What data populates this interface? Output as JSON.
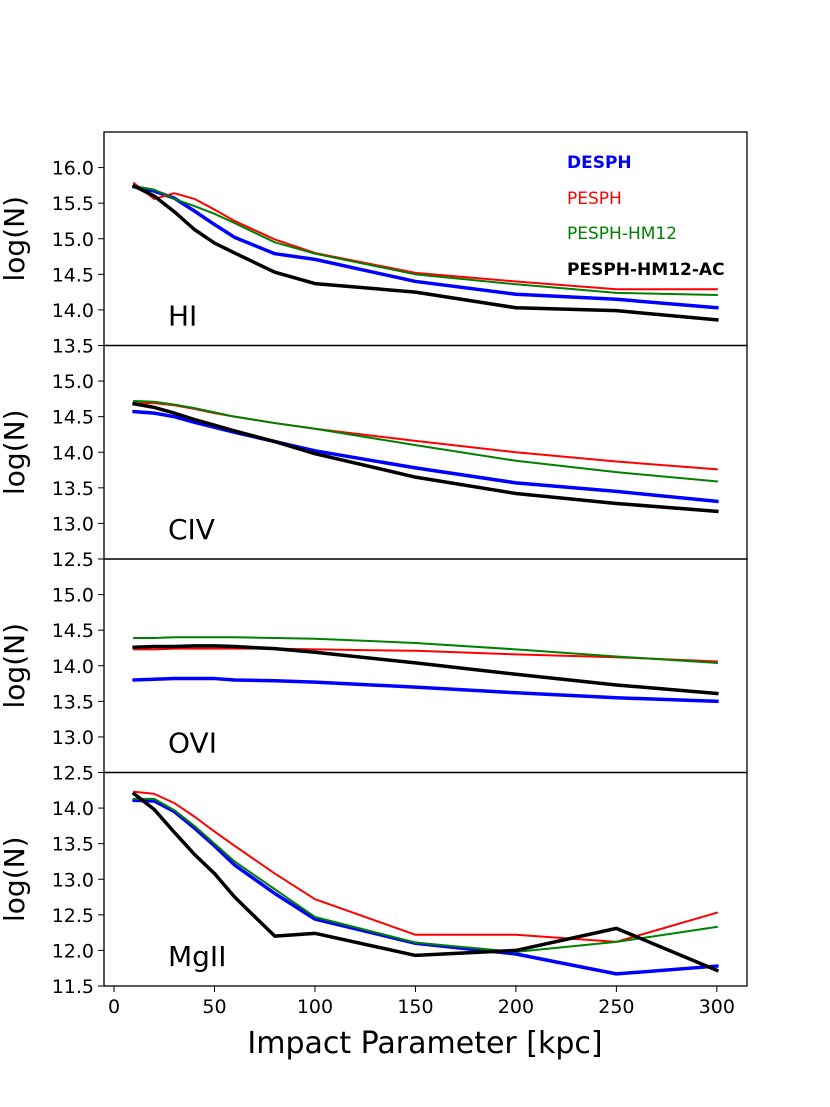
{
  "chart_data": {
    "type": "line",
    "xlabel": "Impact Parameter [kpc]",
    "xlim": [
      -5,
      315
    ],
    "xticks": [
      0,
      50,
      100,
      150,
      200,
      250,
      300
    ],
    "legend": {
      "placement": "top-right of first panel",
      "entries": [
        {
          "name": "DESPH",
          "color": "#0000ff",
          "bold": true
        },
        {
          "name": "PESPH",
          "color": "#ff0000",
          "bold": false
        },
        {
          "name": "PESPH-HM12",
          "color": "#008000",
          "bold": false
        },
        {
          "name": "PESPH-HM12-AC",
          "color": "#000000",
          "bold": true
        }
      ]
    },
    "panels": [
      {
        "label": "HI",
        "ylabel": "log(N)",
        "ylim": [
          13.5,
          16.5
        ],
        "yticks": [
          13.5,
          14.0,
          14.5,
          15.0,
          15.5,
          16.0
        ],
        "series": [
          {
            "name": "DESPH",
            "color": "#0000ff",
            "width": 3.5,
            "x": [
              10,
              20,
              30,
              40,
              50,
              60,
              80,
              100,
              150,
              200,
              250,
              300
            ],
            "y": [
              15.73,
              15.67,
              15.57,
              15.39,
              15.2,
              15.02,
              14.79,
              14.71,
              14.4,
              14.22,
              14.15,
              14.03
            ]
          },
          {
            "name": "PESPH",
            "color": "#ff0000",
            "width": 2,
            "x": [
              10,
              20,
              30,
              40,
              50,
              60,
              80,
              100,
              150,
              200,
              250,
              300
            ],
            "y": [
              15.78,
              15.56,
              15.64,
              15.56,
              15.41,
              15.25,
              14.99,
              14.8,
              14.52,
              14.4,
              14.29,
              14.29
            ]
          },
          {
            "name": "PESPH-HM12",
            "color": "#008000",
            "width": 2,
            "x": [
              10,
              20,
              30,
              40,
              50,
              60,
              80,
              100,
              150,
              200,
              250,
              300
            ],
            "y": [
              15.74,
              15.69,
              15.56,
              15.46,
              15.35,
              15.22,
              14.95,
              14.79,
              14.5,
              14.36,
              14.24,
              14.21
            ]
          },
          {
            "name": "PESPH-HM12-AC",
            "color": "#000000",
            "width": 3.5,
            "x": [
              10,
              20,
              30,
              40,
              50,
              60,
              80,
              100,
              150,
              200,
              250,
              300
            ],
            "y": [
              15.74,
              15.6,
              15.38,
              15.13,
              14.94,
              14.8,
              14.53,
              14.37,
              14.25,
              14.03,
              13.99,
              13.86
            ]
          }
        ]
      },
      {
        "label": "CIV",
        "ylabel": "log(N)",
        "ylim": [
          12.5,
          15.5
        ],
        "yticks": [
          12.5,
          13.0,
          13.5,
          14.0,
          14.5,
          15.0
        ],
        "series": [
          {
            "name": "DESPH",
            "color": "#0000ff",
            "width": 3.5,
            "x": [
              10,
              20,
              30,
              40,
              50,
              60,
              80,
              100,
              150,
              200,
              250,
              300
            ],
            "y": [
              14.57,
              14.55,
              14.5,
              14.42,
              14.35,
              14.28,
              14.15,
              14.02,
              13.78,
              13.57,
              13.45,
              13.31
            ]
          },
          {
            "name": "PESPH",
            "color": "#ff0000",
            "width": 2,
            "x": [
              10,
              20,
              30,
              40,
              50,
              60,
              80,
              100,
              150,
              200,
              250,
              300
            ],
            "y": [
              14.69,
              14.69,
              14.66,
              14.61,
              14.55,
              14.5,
              14.41,
              14.33,
              14.16,
              14.0,
              13.87,
              13.76
            ]
          },
          {
            "name": "PESPH-HM12",
            "color": "#008000",
            "width": 2,
            "x": [
              10,
              20,
              30,
              40,
              50,
              60,
              80,
              100,
              150,
              200,
              250,
              300
            ],
            "y": [
              14.72,
              14.71,
              14.67,
              14.62,
              14.56,
              14.5,
              14.41,
              14.33,
              14.1,
              13.88,
              13.72,
              13.59
            ]
          },
          {
            "name": "PESPH-HM12-AC",
            "color": "#000000",
            "width": 3.5,
            "x": [
              10,
              20,
              30,
              40,
              50,
              60,
              80,
              100,
              150,
              200,
              250,
              300
            ],
            "y": [
              14.68,
              14.63,
              14.55,
              14.46,
              14.38,
              14.3,
              14.15,
              13.98,
              13.65,
              13.42,
              13.28,
              13.17
            ]
          }
        ]
      },
      {
        "label": "OVI",
        "ylabel": "log(N)",
        "ylim": [
          12.5,
          15.5
        ],
        "yticks": [
          12.5,
          13.0,
          13.5,
          14.0,
          14.5,
          15.0
        ],
        "series": [
          {
            "name": "DESPH",
            "color": "#0000ff",
            "width": 3.5,
            "x": [
              10,
              20,
              30,
              40,
              50,
              60,
              80,
              100,
              150,
              200,
              250,
              300
            ],
            "y": [
              13.8,
              13.81,
              13.82,
              13.82,
              13.82,
              13.8,
              13.79,
              13.77,
              13.7,
              13.62,
              13.55,
              13.5
            ]
          },
          {
            "name": "PESPH",
            "color": "#ff0000",
            "width": 2,
            "x": [
              10,
              20,
              30,
              40,
              50,
              60,
              80,
              100,
              150,
              200,
              250,
              300
            ],
            "y": [
              14.23,
              14.23,
              14.24,
              14.24,
              14.24,
              14.24,
              14.24,
              14.23,
              14.21,
              14.16,
              14.12,
              14.06
            ]
          },
          {
            "name": "PESPH-HM12",
            "color": "#008000",
            "width": 2,
            "x": [
              10,
              20,
              30,
              40,
              50,
              60,
              80,
              100,
              150,
              200,
              250,
              300
            ],
            "y": [
              14.39,
              14.39,
              14.4,
              14.4,
              14.4,
              14.4,
              14.39,
              14.38,
              14.32,
              14.23,
              14.13,
              14.04
            ]
          },
          {
            "name": "PESPH-HM12-AC",
            "color": "#000000",
            "width": 3.5,
            "x": [
              10,
              20,
              30,
              40,
              50,
              60,
              80,
              100,
              150,
              200,
              250,
              300
            ],
            "y": [
              14.26,
              14.27,
              14.27,
              14.28,
              14.28,
              14.27,
              14.24,
              14.19,
              14.04,
              13.88,
              13.73,
              13.61
            ]
          }
        ]
      },
      {
        "label": "MgII",
        "ylabel": "log(N)",
        "ylim": [
          11.5,
          14.5
        ],
        "yticks": [
          11.5,
          12.0,
          12.5,
          13.0,
          13.5,
          14.0
        ],
        "series": [
          {
            "name": "DESPH",
            "color": "#0000ff",
            "width": 3.5,
            "x": [
              10,
              20,
              30,
              40,
              50,
              60,
              80,
              100,
              150,
              200,
              250,
              300
            ],
            "y": [
              14.11,
              14.1,
              13.95,
              13.72,
              13.47,
              13.2,
              12.8,
              12.44,
              12.1,
              11.95,
              11.67,
              11.78
            ]
          },
          {
            "name": "PESPH",
            "color": "#ff0000",
            "width": 2,
            "x": [
              10,
              20,
              30,
              40,
              50,
              60,
              80,
              100,
              150,
              200,
              250,
              300
            ],
            "y": [
              14.23,
              14.2,
              14.07,
              13.88,
              13.67,
              13.47,
              13.08,
              12.72,
              12.22,
              12.22,
              12.12,
              12.53
            ]
          },
          {
            "name": "PESPH-HM12",
            "color": "#008000",
            "width": 2,
            "x": [
              10,
              20,
              30,
              40,
              50,
              60,
              80,
              100,
              150,
              200,
              250,
              300
            ],
            "y": [
              14.13,
              14.13,
              13.97,
              13.75,
              13.5,
              13.25,
              12.86,
              12.47,
              12.11,
              11.98,
              12.12,
              12.33
            ]
          },
          {
            "name": "PESPH-HM12-AC",
            "color": "#000000",
            "width": 3.5,
            "x": [
              10,
              20,
              30,
              40,
              50,
              60,
              80,
              100,
              150,
              200,
              250,
              300
            ],
            "y": [
              14.2,
              13.98,
              13.66,
              13.35,
              13.08,
              12.75,
              12.2,
              12.24,
              11.93,
              12.0,
              12.31,
              11.72
            ]
          }
        ]
      }
    ]
  }
}
